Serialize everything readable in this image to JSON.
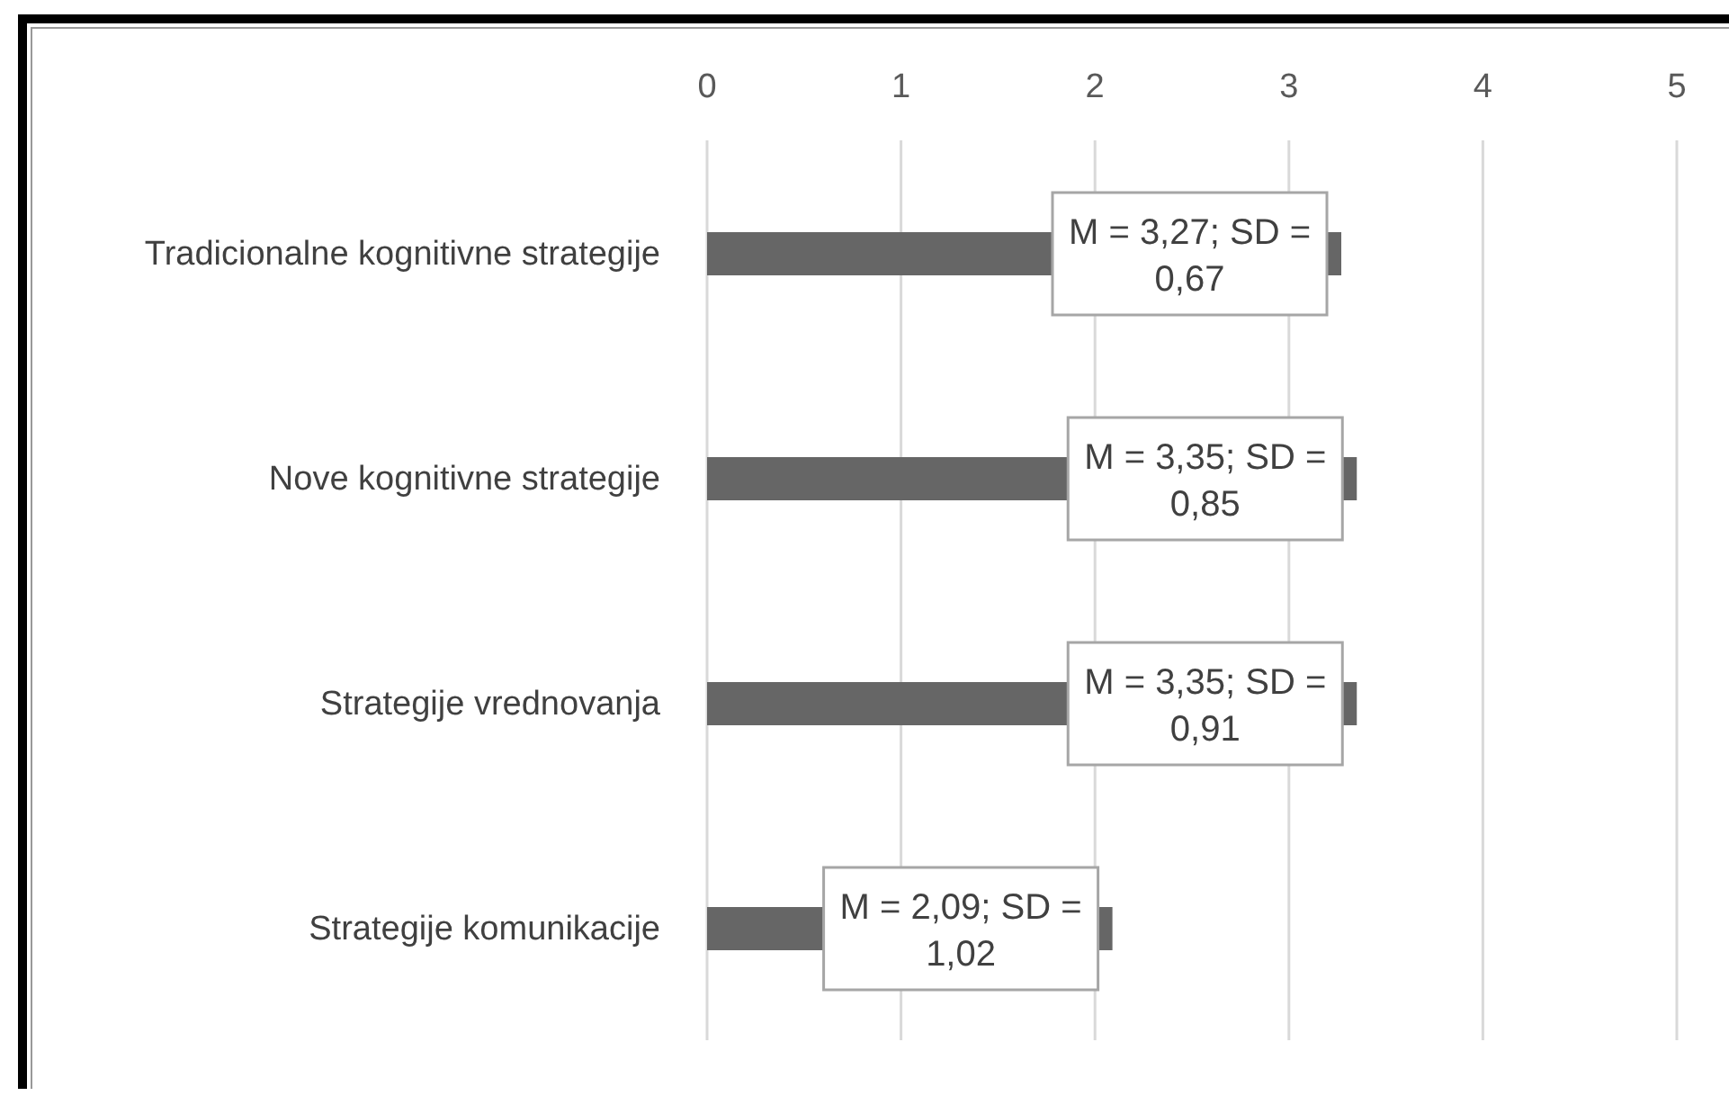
{
  "chart_data": {
    "type": "bar",
    "orientation": "horizontal",
    "categories": [
      "Tradicionalne kognitivne strategije",
      "Nove kognitivne strategije",
      "Strategije vrednovanja",
      "Strategije komunikacije"
    ],
    "values": [
      3.27,
      3.35,
      3.35,
      2.09
    ],
    "value_labels": [
      "M = 3,27; SD = 0,67",
      "M = 3,35; SD = 0,85",
      "M = 3,35; SD = 0,91",
      "M = 2,09; SD = 1,02"
    ],
    "color": "#666666",
    "xlim": [
      0,
      5
    ],
    "xticks": [
      0,
      1,
      2,
      3,
      4,
      5
    ],
    "grid": "x"
  }
}
